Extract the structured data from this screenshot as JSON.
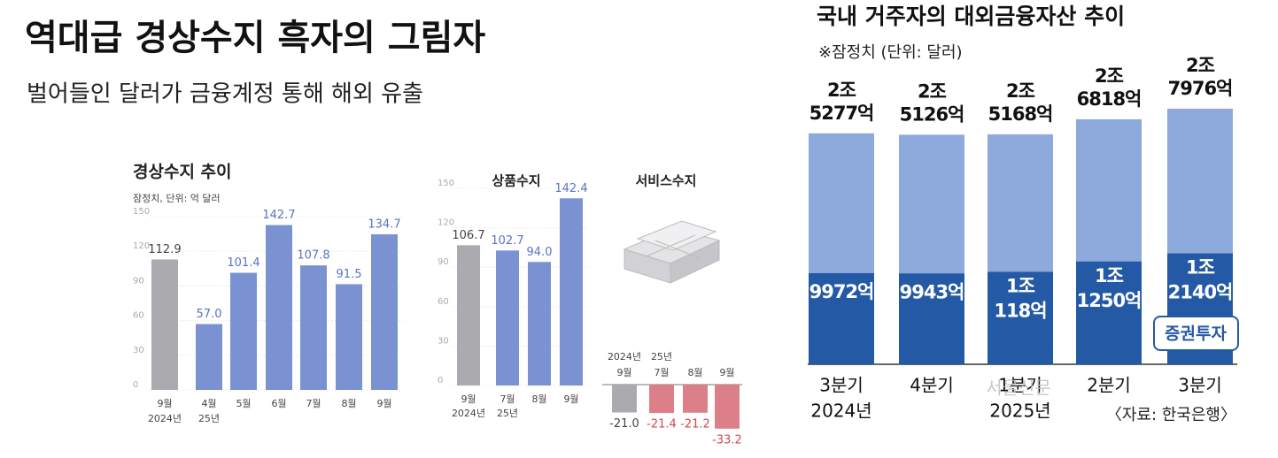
{
  "header": {
    "title": "역대급 경상수지 흑자의 그림자",
    "subtitle": "벌어들인 달러가 금융계정 통해 해외 유출"
  },
  "chart_data": [
    {
      "type": "bar",
      "title": "경상수지 추이",
      "subtitle": "잠정치, 단위: 억 달러",
      "categories": [
        "9월",
        "4월",
        "5월",
        "6월",
        "7월",
        "8월",
        "9월"
      ],
      "x_sublabels": [
        "2024년",
        "25년",
        null,
        null,
        null,
        null,
        null
      ],
      "values": [
        112.9,
        57.0,
        101.4,
        142.7,
        107.8,
        91.5,
        134.7
      ],
      "value_labels": [
        "112.9",
        "57.0",
        "101.4",
        "142.7",
        "107.8",
        "91.5",
        "134.7"
      ],
      "colors": [
        "#aaaaaf",
        "#7a92d2",
        "#7a92d2",
        "#7a92d2",
        "#7a92d2",
        "#7a92d2",
        "#7a92d2"
      ],
      "label_colors": [
        "#444444",
        "#5a74c0",
        "#5a74c0",
        "#5a74c0",
        "#5a74c0",
        "#5a74c0",
        "#5a74c0"
      ],
      "ylim": [
        0,
        150
      ],
      "yticks": [
        0,
        30,
        60,
        90,
        120,
        150
      ],
      "grid": true
    },
    {
      "type": "bar",
      "title": "상품수지",
      "categories": [
        "9월",
        "7월",
        "8월",
        "9월"
      ],
      "x_sublabels": [
        "2024년",
        "25년",
        null,
        null
      ],
      "values": [
        106.7,
        102.7,
        94.0,
        142.4
      ],
      "value_labels": [
        "106.7",
        "102.7",
        "94.0",
        "142.4"
      ],
      "colors": [
        "#aaaaaf",
        "#7a92d2",
        "#7a92d2",
        "#7a92d2"
      ],
      "label_colors": [
        "#444444",
        "#5a74c0",
        "#5a74c0",
        "#5a74c0"
      ],
      "ylim": [
        0,
        150
      ],
      "yticks": [
        0,
        30,
        60,
        90,
        120,
        150
      ],
      "grid": true
    },
    {
      "type": "bar",
      "title": "서비스수지",
      "categories": [
        "9월",
        "7월",
        "8월",
        "9월"
      ],
      "x_sublabels": [
        "2024년",
        "25년",
        null,
        null
      ],
      "values": [
        -21.0,
        -21.4,
        -21.2,
        -33.2
      ],
      "value_labels": [
        "-21.0",
        "-21.4",
        "-21.2",
        "-33.2"
      ],
      "colors": [
        "#aaaaaf",
        "#dc7f88",
        "#dc7f88",
        "#dc7f88"
      ],
      "label_colors": [
        "#444444",
        "#d2464f",
        "#d2464f",
        "#d2464f"
      ],
      "ylim": [
        -40,
        0
      ]
    },
    {
      "type": "overlay_bar",
      "title": "국내 거주자의 대외금융자산 추이",
      "subtitle": "※잠정치 (단위: 달러)",
      "categories": [
        "3분기",
        "4분기",
        "1분기",
        "2분기",
        "3분기"
      ],
      "x_sublabels": [
        "2024년",
        null,
        "2025년",
        null,
        null
      ],
      "totals": [
        25277,
        25126,
        25168,
        26818,
        27976
      ],
      "total_labels": [
        [
          "2조",
          "5277억"
        ],
        [
          "2조",
          "5126억"
        ],
        [
          "2조",
          "5168억"
        ],
        [
          "2조",
          "6818억"
        ],
        [
          "2조",
          "7976억"
        ]
      ],
      "total_color": "#8eaadc",
      "series": [
        {
          "name": "증권투자",
          "color": "#2459a6",
          "values": [
            9972,
            9943,
            10118,
            11250,
            12140
          ],
          "value_labels": [
            [
              "9972억"
            ],
            [
              "9943억"
            ],
            [
              "1조",
              "118억"
            ],
            [
              "1조",
              "1250억"
            ],
            [
              "1조",
              "2140억"
            ]
          ]
        }
      ],
      "ylim": [
        0,
        30000
      ],
      "source": "〈자료: 한국은행〉",
      "watermark": "서울신문"
    }
  ]
}
